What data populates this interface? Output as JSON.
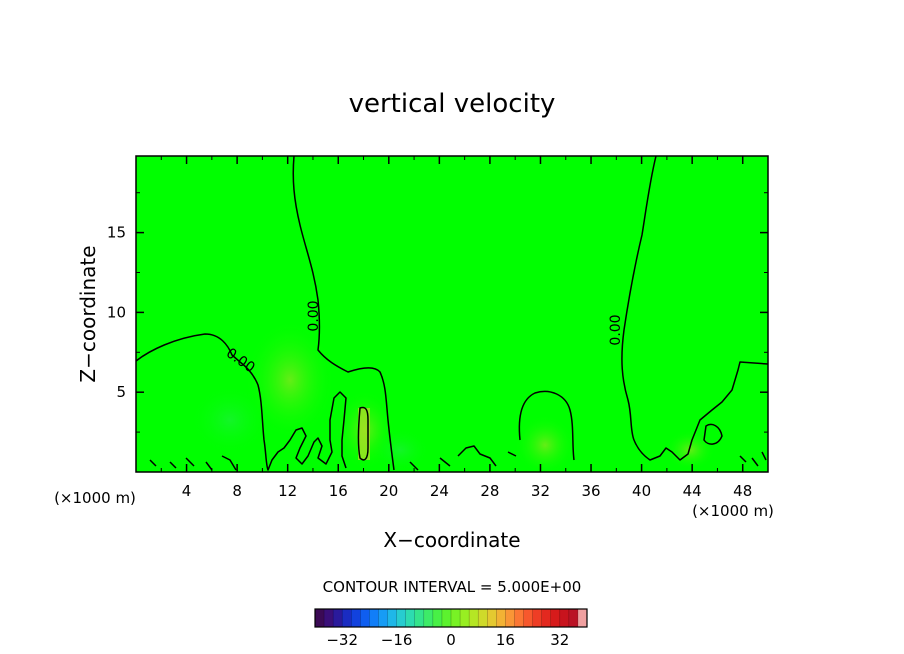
{
  "chart_data": {
    "type": "heatmap",
    "title": "vertical velocity",
    "xlabel": "X−coordinate",
    "ylabel": "Z−coordinate",
    "x_unit_label": "(×1000 m)",
    "y_unit_label": "(×1000 m)",
    "xlim": [
      0,
      50
    ],
    "ylim": [
      0,
      19.8
    ],
    "x_ticks": [
      4,
      8,
      12,
      16,
      20,
      24,
      28,
      32,
      36,
      40,
      44,
      48
    ],
    "y_ticks": [
      5,
      10,
      15
    ],
    "contour_interval_label": "CONTOUR INTERVAL = 5.000E+00",
    "contour_labels": [
      {
        "text": "0.00",
        "x": 14.0,
        "y": 10.0
      },
      {
        "text": "0.00",
        "x": 6.8,
        "y": 7.0
      },
      {
        "text": "0.00",
        "x": 38.7,
        "y": 8.8
      }
    ],
    "colorbar": {
      "min": -40,
      "max": 40,
      "ticks": [
        -32,
        -16,
        0,
        16,
        32
      ],
      "colors": [
        "#3b0a55",
        "#3a0f79",
        "#2a1a9c",
        "#1a2cc2",
        "#1242de",
        "#0f5ef0",
        "#117ef8",
        "#179cf5",
        "#1fb7e8",
        "#27ccd0",
        "#2ddbb0",
        "#34e48c",
        "#3deb68",
        "#48f046",
        "#5cf22e",
        "#78f225",
        "#98ee22",
        "#b5e624",
        "#cfda2a",
        "#e4c930",
        "#f2b234",
        "#f99636",
        "#fb7734",
        "#f7582d",
        "#ee3d25",
        "#e3291f",
        "#d61b1b",
        "#c8131d",
        "#ba1224",
        "#f0a0a0"
      ]
    },
    "field_base_color": "#00ff00"
  }
}
